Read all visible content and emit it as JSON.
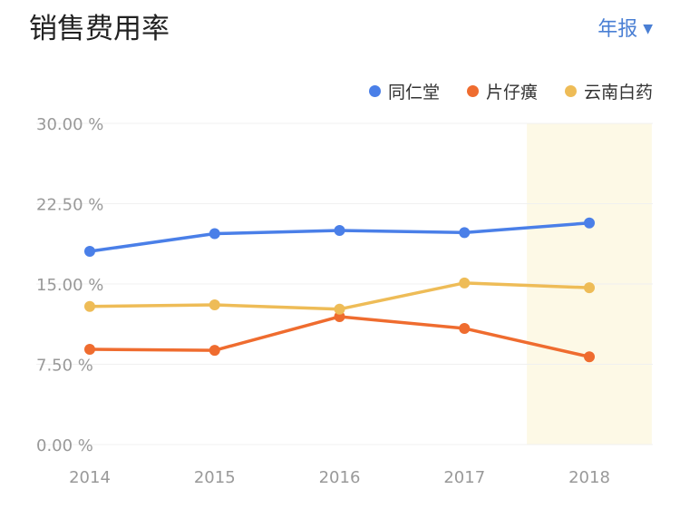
{
  "header": {
    "title": "销售费用率",
    "period_label": "年报",
    "period_icon": "caret-down-icon"
  },
  "chart_data": {
    "type": "line",
    "title": "销售费用率",
    "categories": [
      "2014",
      "2015",
      "2016",
      "2017",
      "2018"
    ],
    "y_ticks": [
      "0.00 %",
      "7.50 %",
      "15.00 %",
      "22.50 %",
      "30.00 %"
    ],
    "ylim": [
      0,
      30
    ],
    "grid": true,
    "legend_position": "top-right",
    "highlight_category": "2018",
    "highlight_color": "#fdf9e6",
    "series": [
      {
        "name": "同仁堂",
        "color": "#4a7fe8",
        "values": [
          18.05,
          19.7,
          20.0,
          19.8,
          20.7
        ]
      },
      {
        "name": "片仔癀",
        "color": "#ef6c2f",
        "values": [
          8.9,
          8.8,
          11.95,
          10.85,
          8.2
        ]
      },
      {
        "name": "云南白药",
        "color": "#eebc57",
        "values": [
          12.9,
          13.05,
          12.65,
          15.1,
          14.65
        ]
      }
    ]
  }
}
